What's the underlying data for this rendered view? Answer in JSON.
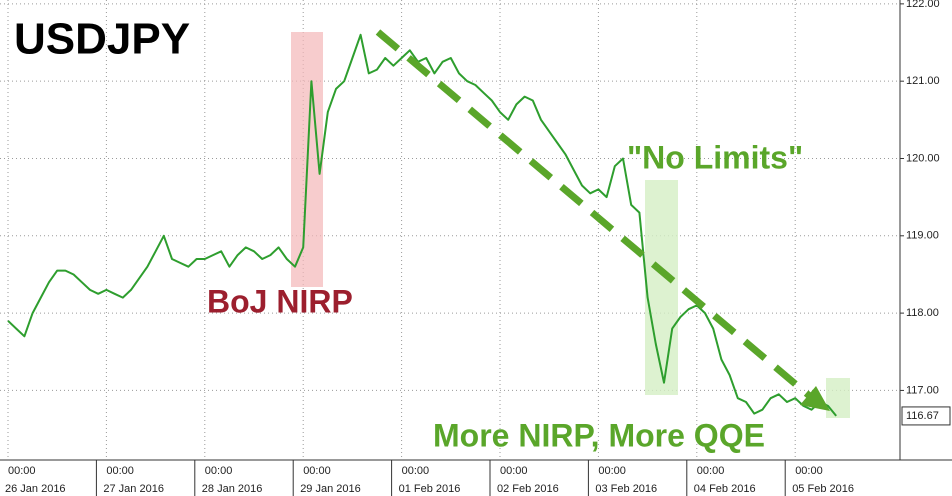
{
  "chart_data": {
    "type": "line",
    "title": "USDJPY",
    "color": "#2e9e2e",
    "annotations": [
      "BoJ NIRP",
      "\"No Limits\"",
      "More NIRP, More QQE"
    ],
    "last_price": {
      "value": 116.67,
      "label": "116.67"
    },
    "ylim": [
      116.1,
      122.05
    ],
    "yticks": [
      {
        "value": 117,
        "label": "117.00"
      },
      {
        "value": 118,
        "label": "118.00"
      },
      {
        "value": 119,
        "label": "119.00"
      },
      {
        "value": 120,
        "label": "120.00"
      },
      {
        "value": 121,
        "label": "121.00"
      },
      {
        "value": 122,
        "label": "122.00"
      }
    ],
    "grid": true,
    "x": [
      "26 Jan 2016 00:00",
      "26 Jan 2016 02:00",
      "26 Jan 2016 04:00",
      "26 Jan 2016 06:00",
      "26 Jan 2016 08:00",
      "26 Jan 2016 10:00",
      "26 Jan 2016 12:00",
      "26 Jan 2016 14:00",
      "26 Jan 2016 16:00",
      "26 Jan 2016 18:00",
      "26 Jan 2016 20:00",
      "26 Jan 2016 22:00",
      "27 Jan 2016 00:00",
      "27 Jan 2016 02:00",
      "27 Jan 2016 04:00",
      "27 Jan 2016 06:00",
      "27 Jan 2016 08:00",
      "27 Jan 2016 10:00",
      "27 Jan 2016 12:00",
      "27 Jan 2016 14:00",
      "27 Jan 2016 16:00",
      "27 Jan 2016 18:00",
      "27 Jan 2016 20:00",
      "27 Jan 2016 22:00",
      "28 Jan 2016 00:00",
      "28 Jan 2016 02:00",
      "28 Jan 2016 04:00",
      "28 Jan 2016 06:00",
      "28 Jan 2016 08:00",
      "28 Jan 2016 10:00",
      "28 Jan 2016 12:00",
      "28 Jan 2016 14:00",
      "28 Jan 2016 16:00",
      "28 Jan 2016 18:00",
      "28 Jan 2016 20:00",
      "28 Jan 2016 22:00",
      "29 Jan 2016 00:00",
      "29 Jan 2016 02:00",
      "29 Jan 2016 04:00",
      "29 Jan 2016 06:00",
      "29 Jan 2016 08:00",
      "29 Jan 2016 10:00",
      "29 Jan 2016 12:00",
      "29 Jan 2016 14:00",
      "29 Jan 2016 16:00",
      "29 Jan 2016 18:00",
      "29 Jan 2016 20:00",
      "29 Jan 2016 22:00",
      "01 Feb 2016 00:00",
      "01 Feb 2016 02:00",
      "01 Feb 2016 04:00",
      "01 Feb 2016 06:00",
      "01 Feb 2016 08:00",
      "01 Feb 2016 10:00",
      "01 Feb 2016 12:00",
      "01 Feb 2016 14:00",
      "01 Feb 2016 16:00",
      "01 Feb 2016 18:00",
      "01 Feb 2016 20:00",
      "01 Feb 2016 22:00",
      "02 Feb 2016 00:00",
      "02 Feb 2016 02:00",
      "02 Feb 2016 04:00",
      "02 Feb 2016 06:00",
      "02 Feb 2016 08:00",
      "02 Feb 2016 10:00",
      "02 Feb 2016 12:00",
      "02 Feb 2016 14:00",
      "02 Feb 2016 16:00",
      "02 Feb 2016 18:00",
      "02 Feb 2016 20:00",
      "02 Feb 2016 22:00",
      "03 Feb 2016 00:00",
      "03 Feb 2016 02:00",
      "03 Feb 2016 04:00",
      "03 Feb 2016 06:00",
      "03 Feb 2016 08:00",
      "03 Feb 2016 10:00",
      "03 Feb 2016 12:00",
      "03 Feb 2016 14:00",
      "03 Feb 2016 16:00",
      "03 Feb 2016 18:00",
      "03 Feb 2016 20:00",
      "03 Feb 2016 22:00",
      "04 Feb 2016 00:00",
      "04 Feb 2016 02:00",
      "04 Feb 2016 04:00",
      "04 Feb 2016 06:00",
      "04 Feb 2016 08:00",
      "04 Feb 2016 10:00",
      "04 Feb 2016 12:00",
      "04 Feb 2016 14:00",
      "04 Feb 2016 16:00",
      "04 Feb 2016 18:00",
      "04 Feb 2016 20:00",
      "04 Feb 2016 22:00",
      "05 Feb 2016 00:00",
      "05 Feb 2016 02:00",
      "05 Feb 2016 04:00",
      "05 Feb 2016 06:00",
      "05 Feb 2016 08:00",
      "05 Feb 2016 10:00"
    ],
    "values": [
      117.9,
      117.8,
      117.7,
      118.0,
      118.2,
      118.4,
      118.55,
      118.55,
      118.5,
      118.4,
      118.3,
      118.25,
      118.3,
      118.25,
      118.2,
      118.3,
      118.45,
      118.6,
      118.8,
      119.0,
      118.7,
      118.65,
      118.6,
      118.7,
      118.7,
      118.75,
      118.8,
      118.6,
      118.75,
      118.85,
      118.8,
      118.7,
      118.75,
      118.85,
      118.7,
      118.6,
      118.85,
      121.0,
      119.8,
      120.6,
      120.9,
      121.0,
      121.3,
      121.6,
      121.1,
      121.15,
      121.3,
      121.2,
      121.3,
      121.4,
      121.25,
      121.3,
      121.1,
      121.25,
      121.3,
      121.1,
      121.0,
      120.95,
      120.85,
      120.75,
      120.6,
      120.5,
      120.7,
      120.8,
      120.75,
      120.5,
      120.35,
      120.2,
      120.05,
      119.85,
      119.65,
      119.55,
      119.6,
      119.5,
      119.9,
      120.0,
      119.4,
      119.3,
      118.2,
      117.6,
      117.1,
      117.8,
      117.95,
      118.05,
      118.1,
      118.0,
      117.8,
      117.4,
      117.2,
      116.9,
      116.85,
      116.7,
      116.75,
      116.9,
      116.95,
      116.85,
      116.9,
      116.8,
      116.75,
      116.85,
      116.8,
      116.67
    ],
    "xticks": [
      {
        "value": "26 Jan 2016 00:00",
        "label": [
          "00:00",
          "26 Jan 2016"
        ]
      },
      {
        "value": "27 Jan 2016 00:00",
        "label": [
          "00:00",
          "27 Jan 2016"
        ]
      },
      {
        "value": "28 Jan 2016 00:00",
        "label": [
          "00:00",
          "28 Jan 2016"
        ]
      },
      {
        "value": "29 Jan 2016 00:00",
        "label": [
          "00:00",
          "29 Jan 2016"
        ]
      },
      {
        "value": "01 Feb 2016 00:00",
        "label": [
          "00:00",
          "01 Feb 2016"
        ]
      },
      {
        "value": "02 Feb 2016 00:00",
        "label": [
          "00:00",
          "02 Feb 2016"
        ]
      },
      {
        "value": "03 Feb 2016 00:00",
        "label": [
          "00:00",
          "03 Feb 2016"
        ]
      },
      {
        "value": "04 Feb 2016 00:00",
        "label": [
          "00:00",
          "04 Feb 2016"
        ]
      },
      {
        "value": "05 Feb 2016 00:00",
        "label": [
          "00:00",
          "05 Feb 2016"
        ]
      }
    ]
  }
}
